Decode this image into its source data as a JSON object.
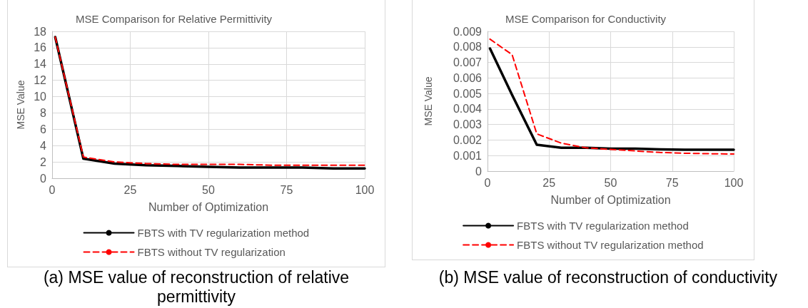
{
  "chart_data": [
    {
      "type": "line",
      "title": "MSE Comparison for Relative Permittivity",
      "xlabel": "Number of Optimization",
      "ylabel": "MSE Value",
      "xlim": [
        0,
        100
      ],
      "xticks": [
        0,
        25,
        50,
        75,
        100
      ],
      "ylim": [
        0,
        18
      ],
      "yticks": [
        0,
        2,
        4,
        6,
        8,
        10,
        12,
        14,
        16,
        18
      ],
      "grid": true,
      "legend": "bottom",
      "marker": "none",
      "annotations": [
        "(a) MSE value of reconstruction of relative permittivity"
      ],
      "series": [
        {
          "name": "FBTS with TV regularization method",
          "color": "#000000",
          "line_style": "solid",
          "x": [
            1,
            10,
            20,
            30,
            40,
            50,
            60,
            70,
            80,
            90,
            100
          ],
          "values": [
            17.3,
            2.4,
            1.8,
            1.6,
            1.5,
            1.4,
            1.3,
            1.3,
            1.3,
            1.2,
            1.2
          ]
        },
        {
          "name": "FBTS without TV regularization",
          "color": "#ff0000",
          "line_style": "dashed",
          "x": [
            1,
            10,
            20,
            30,
            40,
            50,
            60,
            70,
            80,
            90,
            100
          ],
          "values": [
            17.3,
            2.6,
            2.0,
            1.8,
            1.7,
            1.7,
            1.7,
            1.6,
            1.6,
            1.6,
            1.6
          ]
        }
      ]
    },
    {
      "type": "line",
      "title": "MSE Comparison for Conductivity",
      "xlabel": "Number of Optimization",
      "ylabel": "MSE Value",
      "xlim": [
        0,
        100
      ],
      "xticks": [
        0,
        25,
        50,
        75,
        100
      ],
      "ylim": [
        0,
        0.009
      ],
      "yticks": [
        0,
        0.001,
        0.002,
        0.003,
        0.004,
        0.005,
        0.006,
        0.007,
        0.008,
        0.009
      ],
      "grid": true,
      "legend": "bottom",
      "marker": "none",
      "annotations": [
        "(b) MSE value of reconstruction of conductivity"
      ],
      "series": [
        {
          "name": "FBTS with TV regularization method",
          "color": "#000000",
          "line_style": "solid",
          "x": [
            1,
            10,
            20,
            30,
            40,
            50,
            60,
            70,
            80,
            90,
            100
          ],
          "values": [
            0.0079,
            0.0049,
            0.0017,
            0.0015,
            0.0015,
            0.00145,
            0.00145,
            0.0014,
            0.00138,
            0.00138,
            0.00138
          ]
        },
        {
          "name": "FBTS without TV regularization method",
          "color": "#ff0000",
          "line_style": "dashed",
          "x": [
            1,
            10,
            20,
            30,
            40,
            50,
            60,
            70,
            80,
            90,
            100
          ],
          "values": [
            0.0085,
            0.0075,
            0.0024,
            0.0018,
            0.0015,
            0.0014,
            0.0013,
            0.0012,
            0.00115,
            0.00112,
            0.0011
          ]
        }
      ]
    }
  ]
}
